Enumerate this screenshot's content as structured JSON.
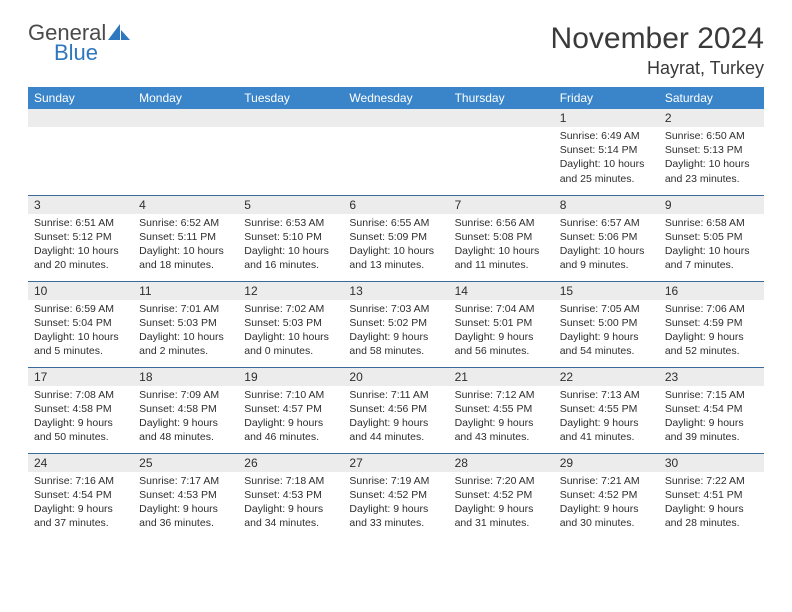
{
  "logo": {
    "word1": "General",
    "word2": "Blue"
  },
  "title": "November 2024",
  "location": "Hayrat, Turkey",
  "colors": {
    "header_bg": "#3a85c9",
    "header_text": "#ffffff",
    "daynum_bg": "#ececec",
    "row_border": "#3a6a9a",
    "title_color": "#3a3a3a",
    "logo_blue": "#2f77bf"
  },
  "day_headers": [
    "Sunday",
    "Monday",
    "Tuesday",
    "Wednesday",
    "Thursday",
    "Friday",
    "Saturday"
  ],
  "weeks": [
    [
      {
        "n": "",
        "sr": "",
        "ss": "",
        "dl": ""
      },
      {
        "n": "",
        "sr": "",
        "ss": "",
        "dl": ""
      },
      {
        "n": "",
        "sr": "",
        "ss": "",
        "dl": ""
      },
      {
        "n": "",
        "sr": "",
        "ss": "",
        "dl": ""
      },
      {
        "n": "",
        "sr": "",
        "ss": "",
        "dl": ""
      },
      {
        "n": "1",
        "sr": "Sunrise: 6:49 AM",
        "ss": "Sunset: 5:14 PM",
        "dl": "Daylight: 10 hours and 25 minutes."
      },
      {
        "n": "2",
        "sr": "Sunrise: 6:50 AM",
        "ss": "Sunset: 5:13 PM",
        "dl": "Daylight: 10 hours and 23 minutes."
      }
    ],
    [
      {
        "n": "3",
        "sr": "Sunrise: 6:51 AM",
        "ss": "Sunset: 5:12 PM",
        "dl": "Daylight: 10 hours and 20 minutes."
      },
      {
        "n": "4",
        "sr": "Sunrise: 6:52 AM",
        "ss": "Sunset: 5:11 PM",
        "dl": "Daylight: 10 hours and 18 minutes."
      },
      {
        "n": "5",
        "sr": "Sunrise: 6:53 AM",
        "ss": "Sunset: 5:10 PM",
        "dl": "Daylight: 10 hours and 16 minutes."
      },
      {
        "n": "6",
        "sr": "Sunrise: 6:55 AM",
        "ss": "Sunset: 5:09 PM",
        "dl": "Daylight: 10 hours and 13 minutes."
      },
      {
        "n": "7",
        "sr": "Sunrise: 6:56 AM",
        "ss": "Sunset: 5:08 PM",
        "dl": "Daylight: 10 hours and 11 minutes."
      },
      {
        "n": "8",
        "sr": "Sunrise: 6:57 AM",
        "ss": "Sunset: 5:06 PM",
        "dl": "Daylight: 10 hours and 9 minutes."
      },
      {
        "n": "9",
        "sr": "Sunrise: 6:58 AM",
        "ss": "Sunset: 5:05 PM",
        "dl": "Daylight: 10 hours and 7 minutes."
      }
    ],
    [
      {
        "n": "10",
        "sr": "Sunrise: 6:59 AM",
        "ss": "Sunset: 5:04 PM",
        "dl": "Daylight: 10 hours and 5 minutes."
      },
      {
        "n": "11",
        "sr": "Sunrise: 7:01 AM",
        "ss": "Sunset: 5:03 PM",
        "dl": "Daylight: 10 hours and 2 minutes."
      },
      {
        "n": "12",
        "sr": "Sunrise: 7:02 AM",
        "ss": "Sunset: 5:03 PM",
        "dl": "Daylight: 10 hours and 0 minutes."
      },
      {
        "n": "13",
        "sr": "Sunrise: 7:03 AM",
        "ss": "Sunset: 5:02 PM",
        "dl": "Daylight: 9 hours and 58 minutes."
      },
      {
        "n": "14",
        "sr": "Sunrise: 7:04 AM",
        "ss": "Sunset: 5:01 PM",
        "dl": "Daylight: 9 hours and 56 minutes."
      },
      {
        "n": "15",
        "sr": "Sunrise: 7:05 AM",
        "ss": "Sunset: 5:00 PM",
        "dl": "Daylight: 9 hours and 54 minutes."
      },
      {
        "n": "16",
        "sr": "Sunrise: 7:06 AM",
        "ss": "Sunset: 4:59 PM",
        "dl": "Daylight: 9 hours and 52 minutes."
      }
    ],
    [
      {
        "n": "17",
        "sr": "Sunrise: 7:08 AM",
        "ss": "Sunset: 4:58 PM",
        "dl": "Daylight: 9 hours and 50 minutes."
      },
      {
        "n": "18",
        "sr": "Sunrise: 7:09 AM",
        "ss": "Sunset: 4:58 PM",
        "dl": "Daylight: 9 hours and 48 minutes."
      },
      {
        "n": "19",
        "sr": "Sunrise: 7:10 AM",
        "ss": "Sunset: 4:57 PM",
        "dl": "Daylight: 9 hours and 46 minutes."
      },
      {
        "n": "20",
        "sr": "Sunrise: 7:11 AM",
        "ss": "Sunset: 4:56 PM",
        "dl": "Daylight: 9 hours and 44 minutes."
      },
      {
        "n": "21",
        "sr": "Sunrise: 7:12 AM",
        "ss": "Sunset: 4:55 PM",
        "dl": "Daylight: 9 hours and 43 minutes."
      },
      {
        "n": "22",
        "sr": "Sunrise: 7:13 AM",
        "ss": "Sunset: 4:55 PM",
        "dl": "Daylight: 9 hours and 41 minutes."
      },
      {
        "n": "23",
        "sr": "Sunrise: 7:15 AM",
        "ss": "Sunset: 4:54 PM",
        "dl": "Daylight: 9 hours and 39 minutes."
      }
    ],
    [
      {
        "n": "24",
        "sr": "Sunrise: 7:16 AM",
        "ss": "Sunset: 4:54 PM",
        "dl": "Daylight: 9 hours and 37 minutes."
      },
      {
        "n": "25",
        "sr": "Sunrise: 7:17 AM",
        "ss": "Sunset: 4:53 PM",
        "dl": "Daylight: 9 hours and 36 minutes."
      },
      {
        "n": "26",
        "sr": "Sunrise: 7:18 AM",
        "ss": "Sunset: 4:53 PM",
        "dl": "Daylight: 9 hours and 34 minutes."
      },
      {
        "n": "27",
        "sr": "Sunrise: 7:19 AM",
        "ss": "Sunset: 4:52 PM",
        "dl": "Daylight: 9 hours and 33 minutes."
      },
      {
        "n": "28",
        "sr": "Sunrise: 7:20 AM",
        "ss": "Sunset: 4:52 PM",
        "dl": "Daylight: 9 hours and 31 minutes."
      },
      {
        "n": "29",
        "sr": "Sunrise: 7:21 AM",
        "ss": "Sunset: 4:52 PM",
        "dl": "Daylight: 9 hours and 30 minutes."
      },
      {
        "n": "30",
        "sr": "Sunrise: 7:22 AM",
        "ss": "Sunset: 4:51 PM",
        "dl": "Daylight: 9 hours and 28 minutes."
      }
    ]
  ]
}
